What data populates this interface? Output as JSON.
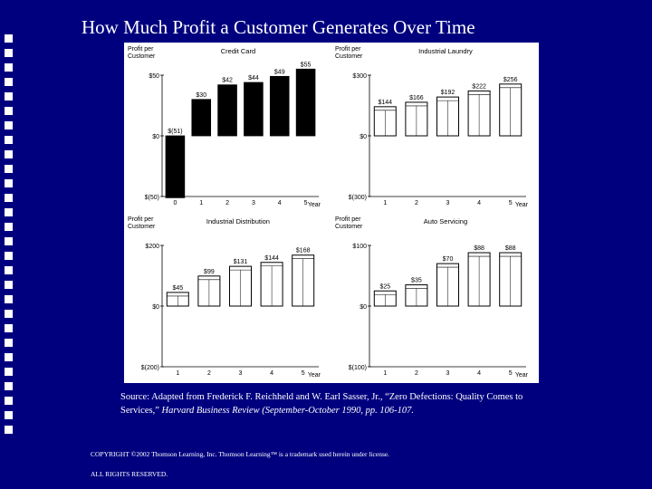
{
  "slide": {
    "title": "How Much Profit a Customer Generates Over Time",
    "source_prefix": "Source:  Adapted from Frederick F. Reichheld and W. Earl Sasser, Jr., “Zero Defections: Quality Comes to Services,”",
    "source_journal": "Harvard Business Review (September-October 1990, pp. 106-107.",
    "copyright": "COPYRIGHT ©2002 Thomson Learning, Inc. Thomson Learning™ is a trademark used herein under license.",
    "rights": "ALL RIGHTS RESERVED."
  },
  "colors": {
    "background": "#00007f",
    "panel": "#ffffff",
    "bar_dark": "#000000",
    "bar_outline": "#000000"
  },
  "chart_data": [
    {
      "type": "bar",
      "title": "Credit Card",
      "ylabel": "Profit per Customer",
      "xlabel": "Year",
      "categories": [
        "0",
        "1",
        "2",
        "3",
        "4",
        "5"
      ],
      "values": [
        -51,
        30,
        42,
        44,
        49,
        55
      ],
      "value_labels": [
        "$(51)",
        "$30",
        "$42",
        "$44",
        "$49",
        "$55"
      ],
      "y_ticks": [
        "$(50)",
        "$0",
        "$50"
      ],
      "ylim": [
        -50,
        50
      ],
      "bar_style": "solid"
    },
    {
      "type": "bar",
      "title": "Industrial Laundry",
      "ylabel": "Profit per Customer",
      "xlabel": "Year",
      "categories": [
        "1",
        "2",
        "3",
        "4",
        "5"
      ],
      "values": [
        144,
        166,
        192,
        222,
        256
      ],
      "value_labels": [
        "$144",
        "$166",
        "$192",
        "$222",
        "$256"
      ],
      "y_ticks": [
        "$(300)",
        "$0",
        "$300"
      ],
      "ylim": [
        -300,
        300
      ],
      "bar_style": "outline"
    },
    {
      "type": "bar",
      "title": "Industrial Distribution",
      "ylabel": "Profit per Customer",
      "xlabel": "Year",
      "categories": [
        "1",
        "2",
        "3",
        "4",
        "5"
      ],
      "values": [
        45,
        99,
        131,
        144,
        168
      ],
      "value_labels": [
        "$45",
        "$99",
        "$131",
        "$144",
        "$168"
      ],
      "y_ticks": [
        "$(200)",
        "$0",
        "$200"
      ],
      "ylim": [
        -200,
        200
      ],
      "bar_style": "outline"
    },
    {
      "type": "bar",
      "title": "Auto Servicing",
      "ylabel": "Profit per Customer",
      "xlabel": "Year",
      "categories": [
        "1",
        "2",
        "3",
        "4",
        "5"
      ],
      "values": [
        25,
        35,
        70,
        88,
        88
      ],
      "value_labels": [
        "$25",
        "$35",
        "$70",
        "$88",
        "$88"
      ],
      "y_ticks": [
        "$(100)",
        "$0",
        "$100"
      ],
      "ylim": [
        -100,
        100
      ],
      "bar_style": "outline"
    }
  ]
}
